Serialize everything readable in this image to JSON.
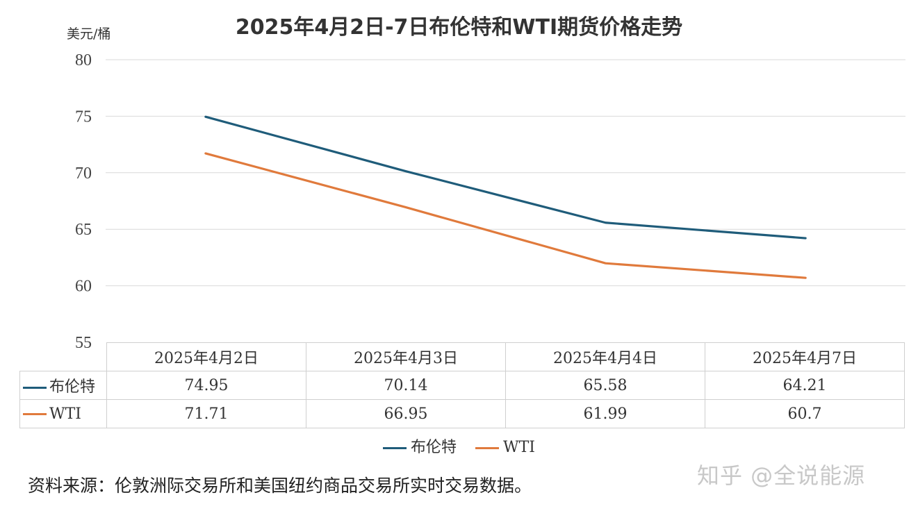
{
  "chart_data": {
    "type": "line",
    "title": "2025年4月2日-7日布伦特和WTI期货价格走势",
    "ylabel": "美元/桶",
    "xlabel": "",
    "ylim": [
      55,
      80
    ],
    "yticks": [
      55,
      60,
      65,
      70,
      75,
      80
    ],
    "yticks_labels": [
      "55",
      "60",
      "65",
      "70",
      "75",
      "80"
    ],
    "grid": true,
    "categories": [
      "2025年4月2日",
      "2025年4月3日",
      "2025年4月4日",
      "2025年4月7日"
    ],
    "series": [
      {
        "name": "布伦特",
        "color": "#1f5c7a",
        "values": [
          74.95,
          70.14,
          65.58,
          64.21
        ],
        "value_labels": [
          "74.95",
          "70.14",
          "65.58",
          "64.21"
        ]
      },
      {
        "name": "WTI",
        "color": "#e07a3c",
        "values": [
          71.71,
          66.95,
          61.99,
          60.7
        ],
        "value_labels": [
          "71.71",
          "66.95",
          "61.99",
          "60.7"
        ]
      }
    ],
    "legend": "bottom"
  },
  "source_text": "资料来源：伦敦洲际交易所和美国纽约商品交易所实时交易数据。",
  "watermark": "知乎 @全说能源"
}
